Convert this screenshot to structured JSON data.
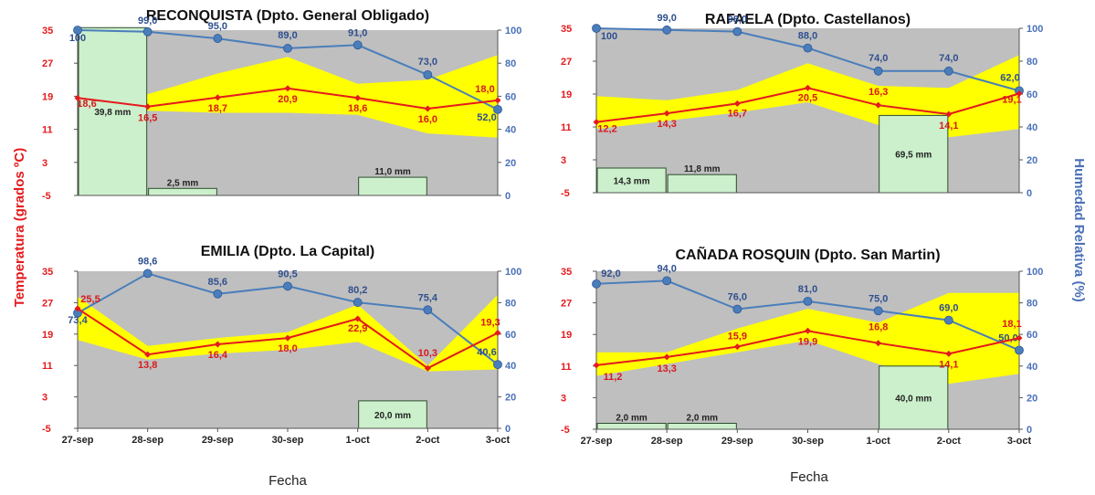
{
  "figure": {
    "y_left_title": "Temperatura (grados ºC)",
    "y_right_title": "Humedad Relativa (%)",
    "x_title": "Fecha"
  },
  "colors": {
    "plot_bg": "#bfbfbf",
    "temp_band": "#ffff00",
    "temp_line": "#e41a1c",
    "humidity_line": "#4a7ebb",
    "rain_bar": "#ccf0cc",
    "left_axis_text": "#e41a1c",
    "right_axis_text": "#4a70b8"
  },
  "chart_data": [
    {
      "type": "line",
      "title": "RECONQUISTA (Dpto. General Obligado)",
      "categories": [
        "27-sep",
        "28-sep",
        "29-sep",
        "30-sep",
        "1-oct",
        "2-oct",
        "3-oct"
      ],
      "show_x_ticks": false,
      "y_left": {
        "ticks": [
          35,
          27,
          19,
          11,
          3,
          -5
        ],
        "ylim": [
          -5,
          35
        ]
      },
      "y_right": {
        "ticks": [
          100,
          80,
          60,
          40,
          20,
          0
        ],
        "ylim": [
          0,
          100
        ]
      },
      "series": [
        {
          "kind": "band",
          "upper": [
            26,
            19.5,
            24.5,
            28.5,
            22,
            23,
            29
          ],
          "lower": [
            15,
            15.5,
            15,
            15,
            14.5,
            10,
            9
          ]
        },
        {
          "kind": "temperature",
          "values": [
            18.6,
            16.5,
            18.7,
            20.9,
            18.6,
            16.0,
            18.0
          ],
          "labels": [
            "18,6",
            "16,5",
            "18,7",
            "20,9",
            "18,6",
            "16,0",
            "18,0"
          ]
        },
        {
          "kind": "humidity",
          "values": [
            100,
            99,
            95,
            89,
            91,
            73,
            52
          ],
          "labels": [
            "100",
            "99,0",
            "95,0",
            "89,0",
            "91,0",
            "73,0",
            "52,0"
          ]
        },
        {
          "kind": "rain",
          "bars": [
            {
              "index": 0,
              "value": 35.6,
              "label": "39,8 mm"
            },
            {
              "index": 1,
              "value": -3.3,
              "label": "2,5 mm"
            },
            {
              "index": 4,
              "value": -0.6,
              "label": "11,0 mm"
            }
          ]
        }
      ]
    },
    {
      "type": "line",
      "title": "RAFAELA (Dpto. Castellanos)",
      "categories": [
        "27-sep",
        "28-sep",
        "29-sep",
        "30-sep",
        "1-oct",
        "2-oct",
        "3-oct"
      ],
      "show_x_ticks": false,
      "y_left": {
        "ticks": [
          35,
          27,
          19,
          11,
          3,
          -5
        ],
        "ylim": [
          -5,
          35
        ]
      },
      "y_right": {
        "ticks": [
          100,
          80,
          60,
          40,
          20,
          0
        ],
        "ylim": [
          0,
          100
        ]
      },
      "series": [
        {
          "kind": "band",
          "upper": [
            18.5,
            17.5,
            20,
            26.5,
            21,
            20.5,
            28.5
          ],
          "lower": [
            10.5,
            12.5,
            14.5,
            17,
            11.5,
            8.5,
            10.5
          ]
        },
        {
          "kind": "temperature",
          "values": [
            12.2,
            14.3,
            16.7,
            20.5,
            16.3,
            14.1,
            19.1
          ],
          "labels": [
            "12,2",
            "14,3",
            "16,7",
            "20,5",
            "16,3",
            "14,1",
            "19,1"
          ]
        },
        {
          "kind": "humidity",
          "values": [
            100,
            99,
            98,
            88,
            74,
            74,
            62
          ],
          "labels": [
            "100",
            "99,0",
            "98,0",
            "88,0",
            "74,0",
            "74,0",
            "62,0"
          ]
        },
        {
          "kind": "rain",
          "bars": [
            {
              "index": 0,
              "value": 1.0,
              "label": "14,3 mm"
            },
            {
              "index": 1,
              "value": -0.6,
              "label": "11,8 mm"
            },
            {
              "index": 4,
              "value": 13.8,
              "label": "69,5 mm"
            }
          ]
        }
      ]
    },
    {
      "type": "line",
      "title": "EMILIA (Dpto. La Capital)",
      "categories": [
        "27-sep",
        "28-sep",
        "29-sep",
        "30-sep",
        "1-oct",
        "2-oct",
        "3-oct"
      ],
      "show_x_ticks": true,
      "y_left": {
        "ticks": [
          35,
          27,
          19,
          11,
          3,
          -5
        ],
        "ylim": [
          -5,
          35
        ]
      },
      "y_right": {
        "ticks": [
          100,
          80,
          60,
          40,
          20,
          0
        ],
        "ylim": [
          0,
          100
        ]
      },
      "series": [
        {
          "kind": "band",
          "upper": [
            28.5,
            16,
            18,
            19.5,
            26.5,
            11,
            29
          ],
          "lower": [
            17.5,
            12.5,
            14,
            15,
            17,
            9.5,
            10
          ]
        },
        {
          "kind": "temperature",
          "values": [
            25.5,
            13.8,
            16.4,
            18.0,
            22.9,
            10.3,
            19.3
          ],
          "labels": [
            "25,5",
            "13,8",
            "16,4",
            "18,0",
            "22,9",
            "10,3",
            "19,3"
          ]
        },
        {
          "kind": "humidity",
          "values": [
            73.4,
            98.6,
            85.6,
            90.5,
            80.2,
            75.4,
            40.6
          ],
          "labels": [
            "73,4",
            "98,6",
            "85,6",
            "90,5",
            "80,2",
            "75,4",
            "40,6"
          ]
        },
        {
          "kind": "rain",
          "bars": [
            {
              "index": 4,
              "value": 2.0,
              "label": "20,0 mm"
            }
          ]
        }
      ]
    },
    {
      "type": "line",
      "title": "CAÑADA ROSQUIN (Dpto. San Martin)",
      "categories": [
        "27-sep",
        "28-sep",
        "29-sep",
        "30-sep",
        "1-oct",
        "2-oct",
        "3-oct"
      ],
      "show_x_ticks": true,
      "y_left": {
        "ticks": [
          35,
          27,
          19,
          11,
          3,
          -5
        ],
        "ylim": [
          -5,
          35
        ]
      },
      "y_right": {
        "ticks": [
          100,
          80,
          60,
          40,
          20,
          0
        ],
        "ylim": [
          0,
          100
        ]
      },
      "series": [
        {
          "kind": "band",
          "upper": [
            14.5,
            14.5,
            20.5,
            25.5,
            22,
            29.5,
            29.5
          ],
          "lower": [
            8.5,
            11.5,
            14.5,
            17.5,
            11.5,
            6.5,
            9
          ]
        },
        {
          "kind": "temperature",
          "values": [
            11.2,
            13.3,
            15.9,
            19.9,
            16.8,
            14.1,
            18.1
          ],
          "labels": [
            "11,2",
            "13,3",
            "15,9",
            "19,9",
            "16,8",
            "14,1",
            "18,1"
          ]
        },
        {
          "kind": "humidity",
          "values": [
            92,
            94,
            76,
            81,
            75,
            69,
            50
          ],
          "labels": [
            "92,0",
            "94,0",
            "76,0",
            "81,0",
            "75,0",
            "69,0",
            "50,0"
          ]
        },
        {
          "kind": "rain",
          "bars": [
            {
              "index": 0,
              "value": -3.5,
              "label": "2,0 mm"
            },
            {
              "index": 1,
              "value": -3.5,
              "label": "2,0 mm"
            },
            {
              "index": 4,
              "value": 11.0,
              "label": "40,0 mm"
            }
          ]
        }
      ]
    }
  ]
}
